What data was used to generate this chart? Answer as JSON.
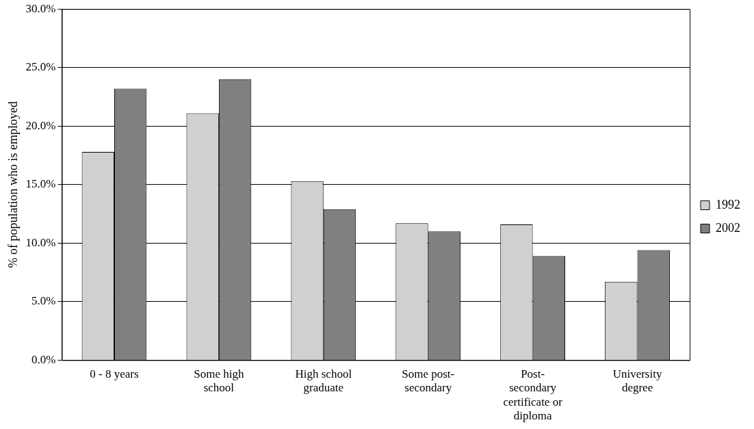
{
  "chart_data": {
    "type": "bar",
    "ylabel": "% of population who is employed",
    "categories": [
      "0 - 8 years",
      "Some high school",
      "High school graduate",
      "Some post-secondary",
      "Post-secondary certificate or diploma",
      "University degree"
    ],
    "series": [
      {
        "name": "1992",
        "color": "#d0d0d0",
        "values": [
          17.8,
          21.1,
          15.3,
          11.7,
          11.6,
          6.7
        ]
      },
      {
        "name": "2002",
        "color": "#808080",
        "values": [
          23.2,
          24.0,
          12.9,
          11.0,
          8.9,
          9.4
        ]
      }
    ],
    "ylim": [
      0,
      30
    ],
    "yticks": [
      {
        "value": 0,
        "label": "0.0%"
      },
      {
        "value": 5,
        "label": "5.0%"
      },
      {
        "value": 10,
        "label": "10.0%"
      },
      {
        "value": 15,
        "label": "15.0%"
      },
      {
        "value": 20,
        "label": "20.0%"
      },
      {
        "value": 25,
        "label": "25.0%"
      },
      {
        "value": 30,
        "label": "30.0%"
      }
    ],
    "grid": "y",
    "legend": "right"
  }
}
